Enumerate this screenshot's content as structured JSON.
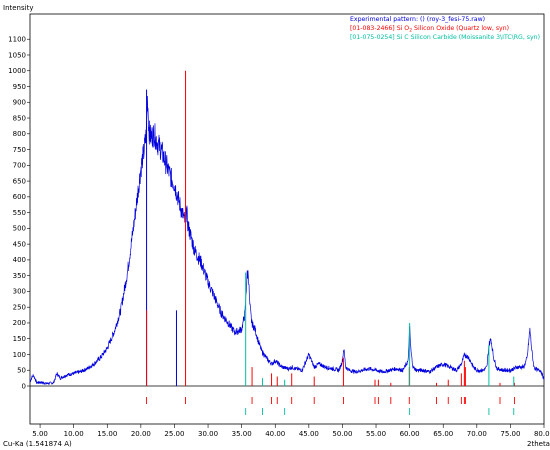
{
  "chart_data": {
    "type": "line",
    "ylabel": "Intensity",
    "xlabel": "2theta",
    "radiation_label": "Cu-Ka (1.541874 A)",
    "xlim": [
      3.5,
      80.0
    ],
    "ylim": [
      0,
      1180
    ],
    "grid": false,
    "legend_position": "top-right",
    "x_ticks": [
      "5.00",
      "10.00",
      "15.00",
      "20.00",
      "25.00",
      "30.00",
      "35.00",
      "40.00",
      "45.00",
      "50.00",
      "55.00",
      "60.00",
      "65.00",
      "70.00",
      "75.00",
      "80.00"
    ],
    "y_ticks": [
      0,
      50,
      100,
      150,
      200,
      250,
      300,
      350,
      400,
      450,
      500,
      550,
      600,
      650,
      700,
      750,
      800,
      850,
      900,
      950,
      1000,
      1050,
      1100
    ],
    "series": [
      {
        "name": "Experimental pattern: () (roy-3_fesi-75.raw)",
        "color": "#0000dd",
        "x": [
          3.5,
          4.0,
          4.5,
          5.0,
          6.0,
          7.0,
          7.5,
          8.0,
          8.5,
          9.0,
          10.0,
          11.0,
          12.0,
          13.0,
          14.0,
          15.0,
          16.0,
          17.0,
          18.0,
          19.0,
          20.0,
          20.5,
          20.8,
          21.0,
          21.2,
          21.5,
          22.0,
          22.5,
          23.0,
          23.5,
          24.0,
          24.5,
          25.0,
          25.5,
          26.0,
          26.3,
          26.6,
          26.8,
          27.0,
          27.5,
          28.0,
          29.0,
          30.0,
          31.0,
          32.0,
          33.0,
          34.0,
          35.0,
          35.5,
          35.8,
          36.0,
          36.2,
          36.5,
          37.0,
          37.5,
          38.0,
          39.0,
          39.5,
          40.0,
          41.0,
          42.0,
          42.5,
          43.0,
          44.0,
          45.0,
          45.8,
          46.5,
          47.5,
          48.5,
          49.5,
          50.0,
          50.2,
          50.5,
          51.0,
          52.0,
          53.0,
          54.0,
          55.0,
          56.0,
          57.0,
          58.0,
          59.0,
          59.8,
          60.0,
          60.2,
          60.5,
          61.0,
          62.0,
          63.0,
          64.0,
          65.0,
          66.0,
          67.0,
          67.7,
          68.2,
          68.8,
          69.5,
          70.0,
          71.0,
          71.5,
          71.8,
          72.1,
          72.5,
          73.0,
          74.0,
          75.0,
          76.0,
          77.0,
          77.5,
          77.9,
          78.2,
          78.5,
          79.0,
          79.5,
          80.0
        ],
        "y": [
          15,
          35,
          10,
          12,
          8,
          10,
          40,
          25,
          30,
          35,
          40,
          45,
          55,
          70,
          90,
          120,
          170,
          240,
          360,
          520,
          690,
          750,
          800,
          920,
          810,
          790,
          800,
          770,
          750,
          720,
          690,
          660,
          640,
          600,
          560,
          540,
          520,
          560,
          510,
          470,
          430,
          390,
          330,
          280,
          230,
          200,
          170,
          180,
          230,
          350,
          360,
          260,
          200,
          180,
          140,
          110,
          80,
          70,
          80,
          60,
          55,
          60,
          55,
          50,
          100,
          60,
          70,
          60,
          55,
          50,
          80,
          120,
          60,
          50,
          45,
          50,
          55,
          50,
          45,
          50,
          55,
          50,
          80,
          190,
          110,
          60,
          50,
          50,
          45,
          60,
          70,
          60,
          50,
          70,
          100,
          90,
          60,
          50,
          50,
          60,
          130,
          150,
          90,
          55,
          50,
          50,
          60,
          60,
          90,
          180,
          110,
          60,
          50,
          50,
          20
        ]
      },
      {
        "name": "[01-083-2466] Si O2 Silicon Oxide (Quartz low, syn)",
        "color": "#ff0000",
        "type": "stick",
        "x": [
          20.85,
          26.65,
          36.55,
          39.45,
          40.3,
          42.45,
          45.8,
          50.15,
          54.85,
          55.35,
          57.2,
          59.95,
          64.0,
          65.75,
          67.7,
          68.15,
          68.3,
          73.45,
          75.6
        ],
        "y": [
          240,
          1000,
          60,
          40,
          30,
          40,
          30,
          90,
          20,
          20,
          10,
          60,
          10,
          20,
          40,
          80,
          60,
          10,
          10
        ]
      },
      {
        "name": "[01-075-0254] Si C Silicon Carbide (Moissanite 3\\ITC\\RG, syn)",
        "color": "#00c0a0",
        "type": "stick",
        "x": [
          35.6,
          38.1,
          41.4,
          60.0,
          71.8,
          75.5
        ],
        "y": [
          360,
          25,
          20,
          200,
          130,
          30
        ]
      }
    ],
    "extra_peaks": [
      {
        "x": 25.3,
        "y": 240,
        "color": "#0000dd"
      }
    ],
    "legend": [
      {
        "label": "Experimental pattern: () (roy-3_fesi-75.raw)",
        "color": "#0000dd"
      },
      {
        "label": "[01-083-2466] Si O",
        "sub": "2",
        "rest": " Silicon Oxide (Quartz low, syn)",
        "color": "#ff0000"
      },
      {
        "label": "[01-075-0254] Si C Silicon Carbide (Moissanite 3\\ITC\\RG, syn)",
        "color": "#00c0a0"
      }
    ]
  }
}
